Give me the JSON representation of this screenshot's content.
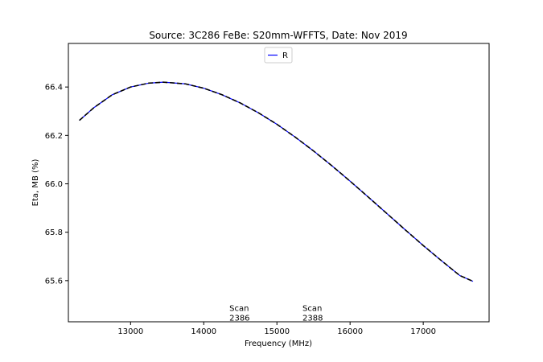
{
  "chart_data": {
    "type": "line",
    "title": "Source: 3C286 FeBe: S20mm-WFFTS, Date: Nov 2019",
    "xlabel": "Frequency (MHz)",
    "ylabel": "Eta, MB (%)",
    "xlim": [
      12150,
      17900
    ],
    "ylim": [
      65.43,
      66.58
    ],
    "xticks": [
      13000,
      14000,
      15000,
      16000,
      17000
    ],
    "xtick_labels": [
      "13000",
      "14000",
      "15000",
      "16000",
      "17000"
    ],
    "yticks": [
      65.6,
      65.8,
      66.0,
      66.2,
      66.4
    ],
    "ytick_labels": [
      "65.6",
      "65.8",
      "66.0",
      "66.2",
      "66.4"
    ],
    "grid": false,
    "legend": {
      "position": "top-center",
      "entries": [
        "R"
      ]
    },
    "series": [
      {
        "name": "R",
        "color": "#0000ff",
        "style": "solid",
        "x": [
          12300,
          12500,
          12750,
          13000,
          13250,
          13450,
          13750,
          14000,
          14250,
          14500,
          14750,
          15000,
          15250,
          15500,
          15750,
          16000,
          16250,
          16500,
          16750,
          17000,
          17250,
          17500,
          17680
        ],
        "y": [
          66.262,
          66.315,
          66.368,
          66.4,
          66.416,
          66.42,
          66.413,
          66.395,
          66.368,
          66.334,
          66.293,
          66.246,
          66.193,
          66.136,
          66.075,
          66.011,
          65.945,
          65.878,
          65.811,
          65.745,
          65.682,
          65.621,
          65.597
        ]
      },
      {
        "color": "#000000",
        "style": "dashed",
        "x": [
          12300,
          12500,
          12750,
          13000,
          13250,
          13450,
          13750,
          14000,
          14250,
          14500,
          14750,
          15000,
          15250,
          15500,
          15750,
          16000,
          16250,
          16500,
          16750,
          17000,
          17250,
          17500,
          17680
        ],
        "y": [
          66.262,
          66.315,
          66.368,
          66.4,
          66.416,
          66.42,
          66.413,
          66.395,
          66.368,
          66.334,
          66.293,
          66.246,
          66.193,
          66.136,
          66.075,
          66.011,
          65.945,
          65.878,
          65.811,
          65.745,
          65.682,
          65.621,
          65.597
        ]
      }
    ],
    "annotations": [
      {
        "x": 14350,
        "y": 65.475,
        "lines": [
          "Scan",
          "2386"
        ]
      },
      {
        "x": 15350,
        "y": 65.475,
        "lines": [
          "Scan",
          "2388"
        ]
      }
    ]
  }
}
